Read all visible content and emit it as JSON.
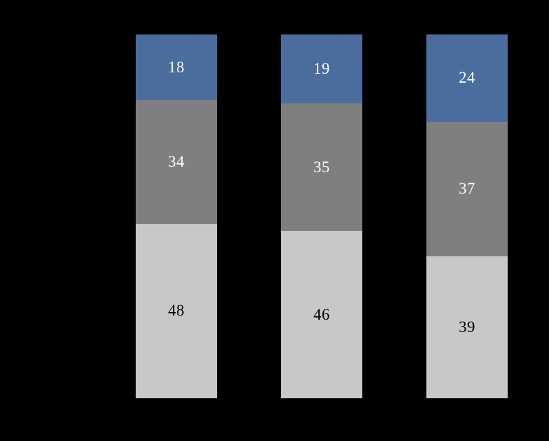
{
  "page": {
    "background_color": "#000000"
  },
  "chart_data": {
    "type": "bar",
    "stacked": true,
    "orientation": "vertical",
    "categories": [
      "",
      "",
      ""
    ],
    "series": [
      {
        "name": "bottom-segment",
        "color": "#c8c8c8",
        "label_color": "#000000",
        "values": [
          48,
          46,
          39
        ]
      },
      {
        "name": "middle-segment",
        "color": "#7f7f7f",
        "label_color": "#ffffff",
        "values": [
          34,
          35,
          37
        ]
      },
      {
        "name": "top-segment",
        "color": "#4a6d9e",
        "label_color": "#ffffff",
        "values": [
          18,
          19,
          24
        ]
      }
    ],
    "value_labels_shown": true,
    "title": "",
    "xlabel": "",
    "ylabel": "",
    "ylim": [
      0,
      100
    ],
    "grid": false,
    "legend": "none",
    "background": "#000000"
  }
}
